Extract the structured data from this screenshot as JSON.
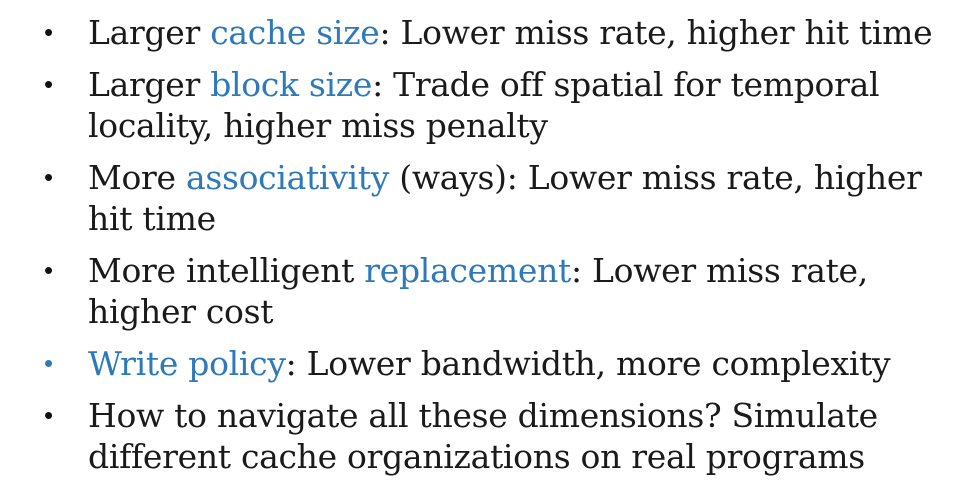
{
  "accent_color": "#2e79b9",
  "text_color": "#1a1a1a",
  "bullets": [
    {
      "dot": "•",
      "pre": "Larger ",
      "keyword": "cache size",
      "line1_rest": ": Lower miss rate, higher hit time",
      "line2": ""
    },
    {
      "dot": "•",
      "pre": "Larger ",
      "keyword": "block size",
      "line1_rest": ": Trade off spatial for temporal",
      "line2": "locality, higher miss penalty"
    },
    {
      "dot": "•",
      "pre": "More ",
      "keyword": "associativity",
      "line1_rest": " (ways): Lower miss rate, higher",
      "line2": "hit time"
    },
    {
      "dot": "•",
      "pre": "More intelligent ",
      "keyword": "replacement",
      "line1_rest": ": Lower miss rate,",
      "line2": "higher cost"
    },
    {
      "dot": "•",
      "pre": "",
      "keyword": "Write policy",
      "line1_rest": ": Lower bandwidth, more complexity",
      "line2": ""
    },
    {
      "dot": "•",
      "pre": "How to navigate all these dimensions? Simulate",
      "keyword": "",
      "line1_rest": "",
      "line2": "different cache organizations on real programs"
    }
  ]
}
